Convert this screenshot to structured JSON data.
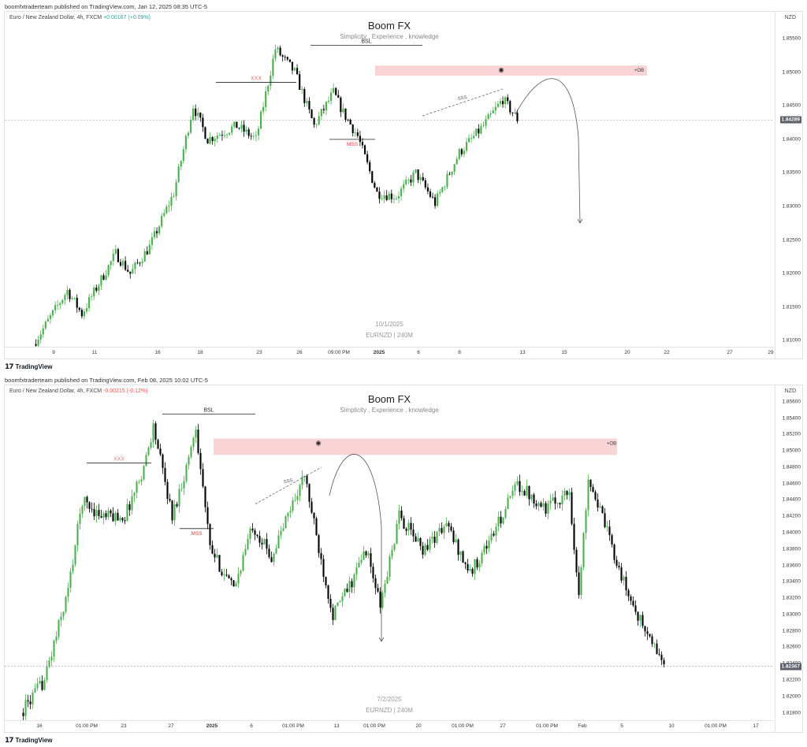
{
  "panels": [
    {
      "published": "boomfxtraderteam published on TradingView.com, Jan 12, 2025 08:35 UTC-5",
      "symbol": "Euro / New Zealand Dollar, 4h, FXCM",
      "change": "+0.00167 (+0.09%)",
      "change_dir": "up",
      "title": "Boom FX",
      "subtitle": "Simplicity , Experience , knowledge",
      "wm_date": "10/1/2025",
      "wm_sym": "EURNZD | 240M",
      "currency": "NZD",
      "last_price": "1.84289",
      "logo": "TradingView",
      "chart_data": {
        "type": "candlestick",
        "price_ticks": [
          "1.85500",
          "1.85000",
          "1.84500",
          "1.84000",
          "1.83500",
          "1.83000",
          "1.82500",
          "1.82000",
          "1.81500",
          "1.81000"
        ],
        "ylim": [
          1.809,
          1.859
        ],
        "time_ticks": [
          "9",
          "11",
          "16",
          "18",
          "23",
          "26",
          "09:00 PM",
          "2025",
          "6",
          "8",
          "13",
          "15",
          "20",
          "22",
          "27",
          "29"
        ],
        "bold_time_ticks": [
          "2025"
        ],
        "annotations": {
          "bsl": "BSL",
          "xxx": "XXX",
          "mss": "MSS",
          "sss": "SSS",
          "ob": "+OB",
          "eye_icon": "eye-icon"
        },
        "levels": {
          "bsl_price": 1.854,
          "xxx_price": 1.8485,
          "mss_price": 1.84,
          "ob_top": 1.851,
          "ob_bottom": 1.8495
        },
        "shape": {
          "start": 1.8095,
          "anchors": [
            [
              0,
              1.8095
            ],
            [
              14,
              1.8175
            ],
            [
              20,
              1.814
            ],
            [
              34,
              1.823
            ],
            [
              40,
              1.82
            ],
            [
              48,
              1.824
            ],
            [
              58,
              1.832
            ],
            [
              66,
              1.845
            ],
            [
              72,
              1.84
            ],
            [
              84,
              1.842
            ],
            [
              92,
              1.84
            ],
            [
              100,
              1.8535
            ],
            [
              108,
              1.85
            ],
            [
              116,
              1.842
            ],
            [
              124,
              1.847
            ],
            [
              128,
              1.844
            ],
            [
              134,
              1.8405
            ],
            [
              142,
              1.832
            ],
            [
              150,
              1.8315
            ],
            [
              158,
              1.835
            ],
            [
              166,
              1.8305
            ],
            [
              176,
              1.838
            ],
            [
              186,
              1.842
            ],
            [
              194,
              1.846
            ],
            [
              200,
              1.843
            ]
          ]
        },
        "candles": 200,
        "color_up": "#4caf50",
        "color_down": "#000000"
      }
    },
    {
      "published": "boomfxtraderteam published on TradingView.com, Feb 08, 2025 10:02 UTC-5",
      "symbol": "Euro / New Zealand Dollar, 4h, FXCM",
      "change": "-0.00215 (-0.12%)",
      "change_dir": "down",
      "title": "Boom FX",
      "subtitle": "Simplicity , Experience , knowledge",
      "wm_date": "7/2/2025",
      "wm_sym": "EURNZD | 240M",
      "currency": "NZD",
      "last_price": "1.82367",
      "logo": "TradingView",
      "chart_data": {
        "type": "candlestick",
        "price_ticks": [
          "1.85600",
          "1.85400",
          "1.85200",
          "1.85000",
          "1.84800",
          "1.84600",
          "1.84400",
          "1.84200",
          "1.84000",
          "1.83800",
          "1.83600",
          "1.83400",
          "1.83200",
          "1.83000",
          "1.82800",
          "1.82600",
          "1.82400",
          "1.82200",
          "1.82000",
          "1.81800"
        ],
        "ylim": [
          1.817,
          1.858
        ],
        "time_ticks": [
          "16",
          "01:00 PM",
          "23",
          "27",
          "2025",
          "6",
          "01:00 PM",
          "13",
          "01:00 PM",
          "20",
          "01:00 PM",
          "27",
          "01:00 PM",
          "Feb",
          "5",
          "10",
          "01:00 PM",
          "17"
        ],
        "bold_time_ticks": [
          "2025"
        ],
        "annotations": {
          "bsl": "BSL",
          "xxx": "XXX",
          "mss": "MSS",
          "sss": "SSS",
          "ob": "+OB",
          "eye_icon": "eye-icon"
        },
        "levels": {
          "bsl_price": 1.8545,
          "xxx_price": 1.8485,
          "mss_price": 1.8405,
          "ob_top": 1.8515,
          "ob_bottom": 1.8495
        },
        "shape": {
          "start": 1.818,
          "anchors": [
            [
              0,
              1.818
            ],
            [
              10,
              1.822
            ],
            [
              20,
              1.833
            ],
            [
              26,
              1.844
            ],
            [
              34,
              1.842
            ],
            [
              44,
              1.842
            ],
            [
              52,
              1.848
            ],
            [
              56,
              1.853
            ],
            [
              64,
              1.842
            ],
            [
              70,
              1.848
            ],
            [
              74,
              1.853
            ],
            [
              80,
              1.838
            ],
            [
              90,
              1.833
            ],
            [
              98,
              1.841
            ],
            [
              106,
              1.837
            ],
            [
              114,
              1.843
            ],
            [
              120,
              1.847
            ],
            [
              126,
              1.838
            ],
            [
              132,
              1.83
            ],
            [
              140,
              1.834
            ],
            [
              146,
              1.838
            ],
            [
              152,
              1.831
            ],
            [
              160,
              1.842
            ],
            [
              170,
              1.838
            ],
            [
              180,
              1.841
            ],
            [
              190,
              1.835
            ],
            [
              200,
              1.84
            ],
            [
              210,
              1.846
            ],
            [
              222,
              1.843
            ],
            [
              232,
              1.845
            ],
            [
              236,
              1.832
            ],
            [
              240,
              1.847
            ],
            [
              248,
              1.84
            ],
            [
              256,
              1.833
            ],
            [
              264,
              1.828
            ],
            [
              272,
              1.824
            ]
          ]
        },
        "candles": 272,
        "color_up": "#4caf50",
        "color_down": "#000000"
      }
    }
  ]
}
